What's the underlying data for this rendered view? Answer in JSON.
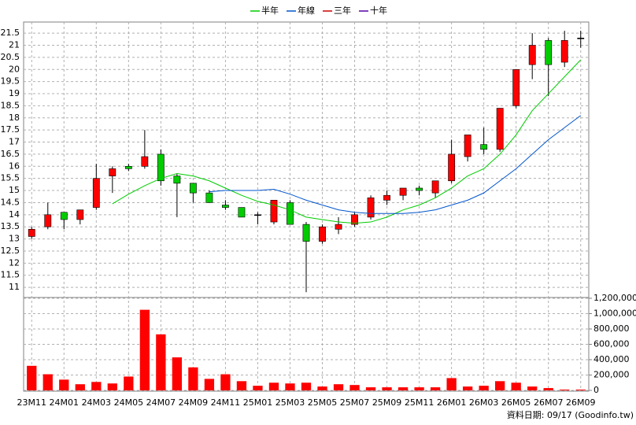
{
  "chart_data": [
    {
      "type": "candlestick",
      "categories": [
        "23M11",
        null,
        "24M01",
        null,
        "24M03",
        null,
        "24M05",
        null,
        "24M07",
        null,
        "24M09",
        null,
        "24M11",
        null,
        "25M01",
        null,
        "25M03",
        null,
        "25M05",
        null,
        "25M07",
        null,
        "25M09",
        null,
        "25M11",
        null,
        "26M01",
        null,
        "26M03",
        null,
        "26M05",
        null,
        "26M07",
        null,
        "26M09"
      ],
      "open": [
        13.1,
        13.5,
        14.1,
        13.8,
        14.3,
        15.6,
        16.0,
        16.0,
        16.5,
        15.6,
        15.3,
        14.9,
        14.4,
        14.3,
        14.0,
        13.7,
        14.5,
        13.6,
        12.9,
        13.4,
        13.6,
        13.9,
        14.6,
        14.8,
        15.1,
        14.9,
        15.4,
        16.4,
        16.9,
        16.7,
        18.5,
        20.2,
        21.2,
        20.3,
        21.3
      ],
      "high": [
        13.5,
        14.5,
        14.1,
        14.2,
        16.1,
        16.0,
        16.1,
        17.5,
        16.7,
        15.7,
        15.3,
        15.0,
        14.6,
        14.3,
        14.1,
        14.6,
        14.6,
        13.7,
        13.6,
        13.9,
        14.1,
        14.8,
        15.0,
        15.1,
        15.2,
        15.4,
        17.1,
        17.3,
        17.6,
        18.4,
        20.0,
        21.5,
        21.3,
        21.6,
        21.6
      ],
      "low": [
        13.0,
        13.4,
        13.4,
        13.6,
        14.2,
        14.9,
        15.8,
        15.9,
        15.2,
        13.9,
        14.5,
        14.5,
        14.2,
        13.9,
        13.6,
        13.6,
        13.6,
        10.8,
        12.8,
        13.2,
        13.5,
        13.8,
        14.4,
        14.6,
        14.8,
        14.7,
        15.3,
        16.2,
        16.5,
        16.6,
        18.4,
        19.6,
        18.9,
        20.1,
        20.9
      ],
      "close": [
        13.4,
        14.0,
        13.8,
        14.2,
        15.5,
        15.9,
        15.9,
        16.4,
        15.4,
        15.3,
        14.9,
        14.5,
        14.3,
        13.9,
        14.0,
        14.6,
        13.6,
        12.9,
        13.5,
        13.6,
        14.0,
        14.7,
        14.8,
        15.1,
        15.0,
        15.4,
        16.5,
        17.3,
        16.7,
        18.4,
        20.0,
        21.0,
        20.2,
        21.2,
        21.3
      ],
      "up_color": "#ff0000",
      "down_color": "#00cc00",
      "flat_color": "#000000",
      "series": [
        {
          "name": "半年",
          "color": "#00cc00",
          "values": [
            null,
            null,
            null,
            null,
            null,
            14.45,
            14.85,
            15.2,
            15.5,
            15.7,
            15.6,
            15.4,
            15.1,
            14.8,
            14.55,
            14.4,
            14.2,
            13.9,
            13.8,
            13.7,
            13.65,
            13.7,
            13.9,
            14.2,
            14.4,
            14.7,
            15.1,
            15.6,
            15.9,
            16.5,
            17.3,
            18.3,
            19.0,
            19.7,
            20.4
          ]
        },
        {
          "name": "年線",
          "color": "#0055cc",
          "values": [
            null,
            null,
            null,
            null,
            null,
            null,
            null,
            null,
            null,
            null,
            null,
            14.95,
            15.0,
            15.0,
            15.0,
            15.05,
            14.85,
            14.6,
            14.4,
            14.2,
            14.1,
            14.05,
            14.05,
            14.05,
            14.1,
            14.2,
            14.4,
            14.6,
            14.9,
            15.4,
            15.9,
            16.5,
            17.1,
            17.6,
            18.1
          ]
        },
        {
          "name": "三年",
          "color": "#cc0000",
          "values": [
            null,
            null,
            null,
            null,
            null,
            null,
            null,
            null,
            null,
            null,
            null,
            null,
            null,
            null,
            null,
            null,
            null,
            null,
            null,
            null,
            null,
            null,
            null,
            null,
            null,
            null,
            null,
            null,
            null,
            null,
            null,
            null,
            null,
            null,
            null
          ]
        },
        {
          "name": "十年",
          "color": "#5500aa",
          "values": [
            null,
            null,
            null,
            null,
            null,
            null,
            null,
            null,
            null,
            null,
            null,
            null,
            null,
            null,
            null,
            null,
            null,
            null,
            null,
            null,
            null,
            null,
            null,
            null,
            null,
            null,
            null,
            null,
            null,
            null,
            null,
            null,
            null,
            null,
            null
          ]
        }
      ],
      "ylim": [
        10.58,
        21.96
      ],
      "yticks": [
        11,
        11.5,
        12,
        12.5,
        13,
        13.5,
        14,
        14.5,
        15,
        15.5,
        16,
        16.5,
        17,
        17.5,
        18,
        18.5,
        19,
        19.5,
        20,
        20.5,
        21,
        21.5
      ],
      "grid": true
    },
    {
      "type": "bar",
      "values": [
        320000,
        210000,
        140000,
        80000,
        110000,
        90000,
        180000,
        1050000,
        730000,
        430000,
        300000,
        150000,
        210000,
        120000,
        60000,
        100000,
        90000,
        100000,
        50000,
        80000,
        70000,
        40000,
        40000,
        40000,
        40000,
        40000,
        160000,
        50000,
        60000,
        120000,
        100000,
        50000,
        30000,
        10000,
        10000
      ],
      "color": "#ff0000",
      "ylim": [
        0,
        1210000
      ],
      "yticks": [
        0,
        {
          "value": 200000,
          "label": "200,000"
        },
        {
          "value": 400000,
          "label": "400,000"
        },
        {
          "value": 600000,
          "label": "600,000"
        },
        {
          "value": 800000,
          "label": "800,000"
        },
        {
          "value": 1000000,
          "label": "1,000,000"
        },
        {
          "value": 1200000,
          "label": "1,200,000"
        }
      ],
      "grid": true,
      "annotation": "資料日期: 09/17 (Goodinfo.tw)"
    }
  ]
}
